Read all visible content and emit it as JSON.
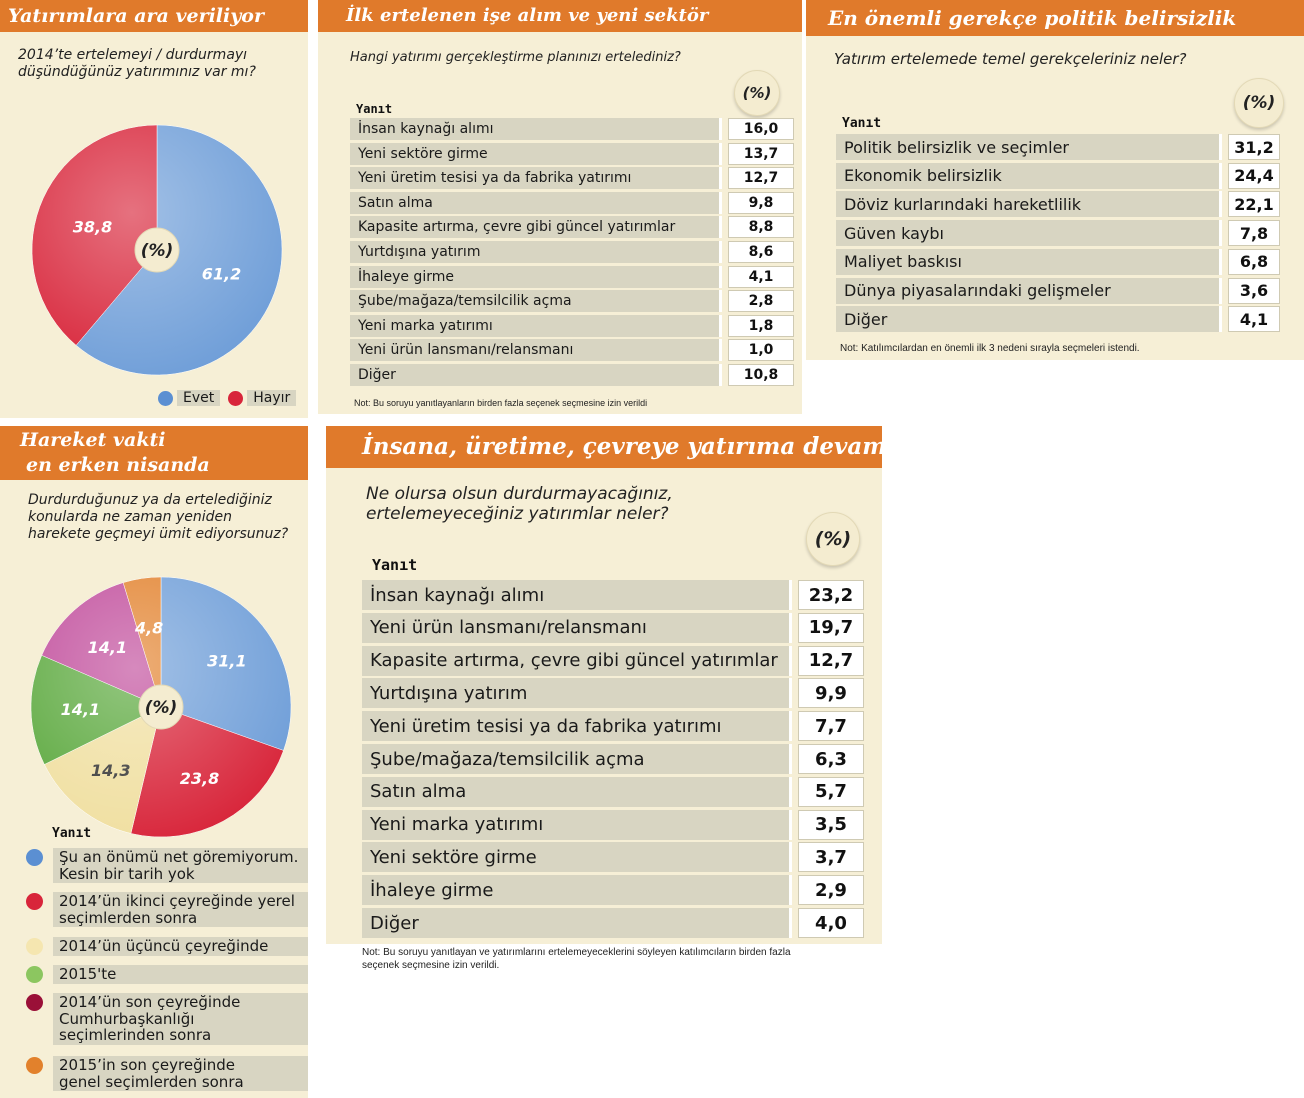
{
  "chart_data": [
    {
      "type": "pie",
      "title": "Yatırımlara ara veriliyor",
      "question": "2014’te ertelemeyi / durdurmayı düşündüğünüz yatırımınız var mı?",
      "unit_label": "(%)",
      "categories": [
        "Evet",
        "Hayır"
      ],
      "values": [
        61.2,
        38.8
      ],
      "value_labels": [
        "61,2",
        "38,8"
      ],
      "colors": [
        "#6f9ed8",
        "#d8253a"
      ],
      "legend_position": "bottom-right"
    },
    {
      "type": "table",
      "title": "İlk ertelenen işe alım ve yeni sektör",
      "question": "Hangi yatırımı gerçekleştirme planınızı ertelediniz?",
      "unit_label": "(%)",
      "column_header": "Yanıt",
      "rows": [
        {
          "label": "İnsan kaynağı alımı",
          "value": "16,0"
        },
        {
          "label": "Yeni sektöre girme",
          "value": "13,7"
        },
        {
          "label": "Yeni üretim tesisi ya da fabrika yatırımı",
          "value": "12,7"
        },
        {
          "label": "Satın alma",
          "value": "9,8"
        },
        {
          "label": "Kapasite artırma, çevre gibi güncel yatırımlar",
          "value": "8,8"
        },
        {
          "label": "Yurtdışına yatırım",
          "value": "8,6"
        },
        {
          "label": "İhaleye girme",
          "value": "4,1"
        },
        {
          "label": "Şube/mağaza/temsilcilik açma",
          "value": "2,8"
        },
        {
          "label": "Yeni marka yatırımı",
          "value": "1,8"
        },
        {
          "label": "Yeni ürün lansmanı/relansmanı",
          "value": "1,0"
        },
        {
          "label": "Diğer",
          "value": "10,8"
        }
      ],
      "note": "Not: Bu soruyu yanıtlayanların birden fazla seçenek seçmesine izin verildi"
    },
    {
      "type": "table",
      "title": "En önemli gerekçe politik belirsizlik",
      "question": "Yatırım ertelemede temel gerekçeleriniz neler?",
      "unit_label": "(%)",
      "column_header": "Yanıt",
      "rows": [
        {
          "label": "Politik belirsizlik ve seçimler",
          "value": "31,2"
        },
        {
          "label": "Ekonomik belirsizlik",
          "value": "24,4"
        },
        {
          "label": "Döviz kurlarındaki hareketlilik",
          "value": "22,1"
        },
        {
          "label": "Güven kaybı",
          "value": "7,8"
        },
        {
          "label": "Maliyet baskısı",
          "value": "6,8"
        },
        {
          "label": "Dünya piyasalarındaki gelişmeler",
          "value": "3,6"
        },
        {
          "label": "Diğer",
          "value": "4,1"
        }
      ],
      "note": "Not: Katılımcılardan en önemli ilk 3 nedeni sırayla seçmeleri istendi."
    },
    {
      "type": "pie",
      "title_lines": [
        "Hareket vakti",
        "en erken nisanda"
      ],
      "question": "Durdurduğunuz ya da ertelediğiniz konularda ne zaman yeniden harekete geçmeyi ümit ediyorsunuz?",
      "unit_label": "(%)",
      "legend_header": "Yanıt",
      "categories": [
        "Şu an önümü net göremiyorum. Kesin bir tarih yok",
        "2014’ün ikinci çeyreğinde yerel seçimlerden sonra",
        "2014’ün üçüncü çeyreğinde",
        "2015’te",
        "2014’ün son çeyreğinde Cumhurbaşkanlığı seçimlerinden sonra",
        "2015’in son çeyreğinde genel seçimlerden sonra"
      ],
      "legend_lines": [
        [
          "Şu an önümü net göremiyorum.",
          "Kesin bir tarih yok"
        ],
        [
          "2014’ün ikinci çeyreğinde yerel",
          "seçimlerden sonra"
        ],
        [
          "2014’ün üçüncü çeyreğinde"
        ],
        [
          "2015'te"
        ],
        [
          "2014’ün son çeyreğinde",
          "Cumhurbaşkanlığı",
          "seçimlerinden sonra"
        ],
        [
          "2015’in son çeyreğinde",
          "genel seçimlerden sonra"
        ]
      ],
      "values": [
        31.1,
        23.8,
        14.3,
        14.1,
        14.1,
        4.8
      ],
      "value_labels": [
        "31,1",
        "23,8",
        "14,3",
        "14,1",
        "14,1",
        "4,8"
      ],
      "label_shown": [
        true,
        true,
        true,
        true,
        true,
        true
      ],
      "colors": [
        "#6f9ed8",
        "#d8253a",
        "#f0dfa0",
        "#5aa83c",
        "#c04a9a",
        "#e2812c"
      ],
      "legend_colors": [
        "#5b8fd2",
        "#d8253a",
        "#f5e6b0",
        "#8cc660",
        "#9a1038",
        "#e2812c"
      ]
    },
    {
      "type": "table",
      "title": "İnsana, üretime, çevreye yatırıma devam",
      "question_lines": [
        "Ne olursa olsun durdurmayacağınız,",
        "ertelemeyeceğiniz yatırımlar neler?"
      ],
      "unit_label": "(%)",
      "column_header": "Yanıt",
      "rows": [
        {
          "label": "İnsan kaynağı alımı",
          "value": "23,2"
        },
        {
          "label": "Yeni ürün lansmanı/relansmanı",
          "value": "19,7"
        },
        {
          "label": "Kapasite artırma, çevre gibi güncel yatırımlar",
          "value": "12,7"
        },
        {
          "label": "Yurtdışına yatırım",
          "value": "9,9"
        },
        {
          "label": "Yeni üretim tesisi ya da fabrika yatırımı",
          "value": "7,7"
        },
        {
          "label": "Şube/mağaza/temsilcilik açma",
          "value": "6,3"
        },
        {
          "label": "Satın alma",
          "value": "5,7"
        },
        {
          "label": "Yeni marka yatırımı",
          "value": "3,5"
        },
        {
          "label": "Yeni sektöre girme",
          "value": "3,7"
        },
        {
          "label": "İhaleye girme",
          "value": "2,9"
        },
        {
          "label": "Diğer",
          "value": "4,0"
        }
      ],
      "note_lines": [
        "Not: Bu soruyu yanıtlayan ve yatırımlarını ertelemeyeceklerini söyleyen katılımcıların birden fazla",
        "seçenek seçmesine izin verildi."
      ]
    }
  ]
}
